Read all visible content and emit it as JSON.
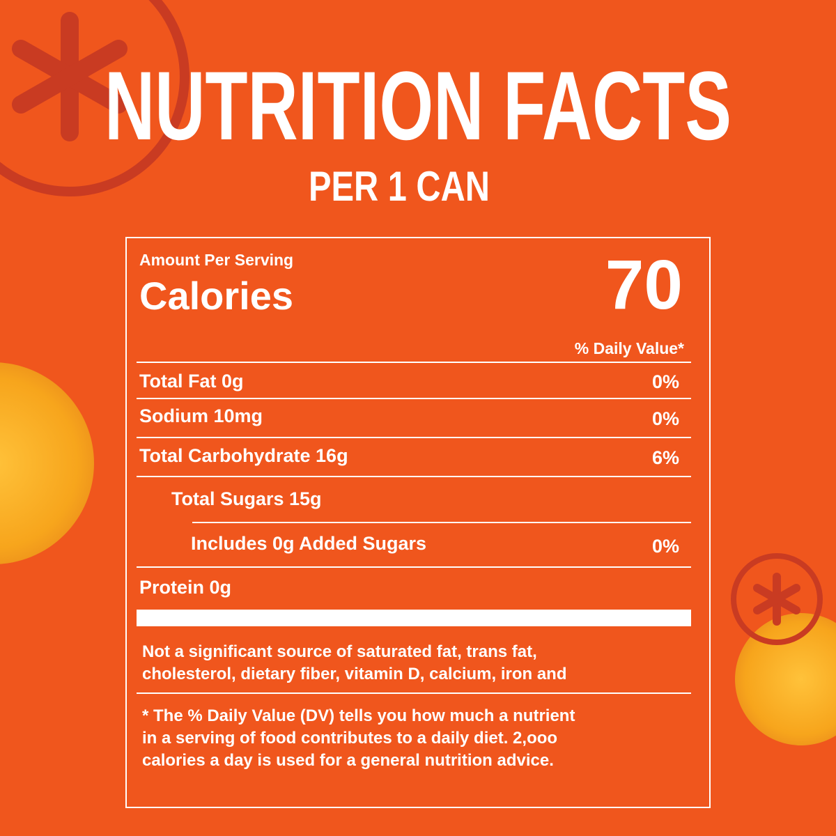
{
  "header": {
    "title": "NUTRITION FACTS",
    "subtitle": "PER 1 CAN"
  },
  "label": {
    "amount_per_serving": "Amount Per Serving",
    "calories_label": "Calories",
    "calories_value": 70,
    "daily_value_header": "% Daily Value*",
    "rows": [
      {
        "name": "Total Fat 0g",
        "dv": "0%"
      },
      {
        "name": "Sodium 10mg",
        "dv": "0%"
      },
      {
        "name": "Total Carbohydrate 16g",
        "dv": "6%"
      },
      {
        "name": "Total Sugars 15g"
      },
      {
        "name": "Includes 0g Added Sugars",
        "dv": "0%"
      },
      {
        "name": "Protein 0g"
      }
    ],
    "note_lines": [
      "Not a significant source of saturated fat, trans fat,",
      "cholesterol, dietary fiber, vitamin D, calcium, iron and"
    ],
    "footnote_lines": [
      "* The % Daily Value (DV) tells  you how much a nutrient",
      "in a serving of food contributes to a daily diet. 2,ooo",
      "calories a day is used for a general nutrition advice."
    ]
  }
}
